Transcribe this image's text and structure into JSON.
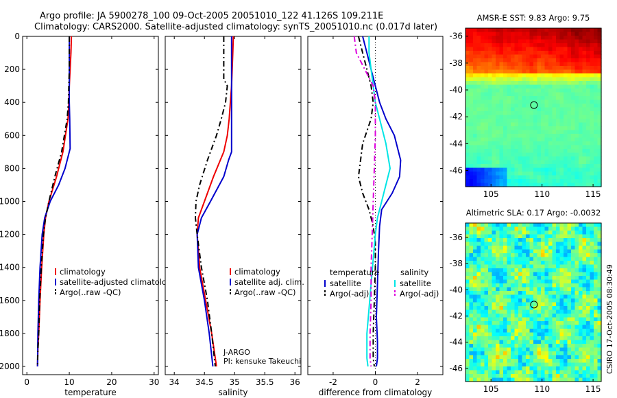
{
  "header": {
    "line1": "Argo profile: JA 5900278_100 09-Oct-2005 20051010_122 41.126S 109.211E",
    "line2": "Climatology: CARS2000. Satellite-adjusted climatology: synTS_20051010.nc (0.017d later)"
  },
  "side_label": "CSIRO 17-Oct-2005 08:30:49",
  "colors": {
    "climatology": "#ee0000",
    "satellite": "#0000cc",
    "argo": "#000000",
    "satellite_salinity": "#00e5e5",
    "argo_salinity": "#dd00dd"
  },
  "chart_data": [
    {
      "type": "line",
      "xlabel": "temperature",
      "xlim": [
        -1,
        31
      ],
      "ylim": [
        2050,
        0
      ],
      "xticks": [
        0,
        10,
        20,
        30
      ],
      "yticks": [
        0,
        200,
        400,
        600,
        800,
        1000,
        1200,
        1400,
        1600,
        1800,
        2000
      ],
      "legend": [
        "climatology",
        "satellite-adjusted climatology",
        "Argo(..raw -QC)"
      ],
      "series": [
        {
          "name": "climatology",
          "style": "solid",
          "color": "#ee0000",
          "x": [
            10.5,
            10.4,
            10.2,
            10.0,
            9.9,
            9.7,
            8.5,
            7.0,
            5.2,
            4.4,
            4.0,
            3.5,
            3.1,
            2.8,
            2.6,
            2.5
          ],
          "y": [
            0,
            100,
            200,
            300,
            400,
            500,
            700,
            850,
            1000,
            1100,
            1200,
            1400,
            1600,
            1800,
            1900,
            2000
          ]
        },
        {
          "name": "satellite-adjusted climatology",
          "style": "solid",
          "color": "#0000cc",
          "x": [
            10.0,
            10.0,
            10.0,
            10.0,
            10.0,
            10.1,
            10.2,
            9.0,
            7.5,
            5.5,
            4.2,
            3.6,
            3.1,
            2.8,
            2.6,
            2.5
          ],
          "y": [
            0,
            100,
            200,
            300,
            400,
            500,
            680,
            800,
            900,
            1000,
            1100,
            1200,
            1400,
            1600,
            1800,
            2000
          ]
        },
        {
          "name": "Argo(..raw -QC)",
          "style": "dashed",
          "color": "#000000",
          "x": [
            10.0,
            10.0,
            10.0,
            9.9,
            9.8,
            9.5,
            8.2,
            6.6,
            5.2,
            4.4,
            3.9,
            3.4,
            3.0,
            2.8,
            2.6,
            2.5
          ],
          "y": [
            0,
            100,
            200,
            300,
            400,
            500,
            700,
            850,
            1000,
            1100,
            1200,
            1400,
            1600,
            1800,
            1900,
            2000
          ]
        }
      ]
    },
    {
      "type": "line",
      "xlabel": "salinity",
      "xlim": [
        33.85,
        36.1
      ],
      "ylim": [
        2050,
        0
      ],
      "xticks": [
        34,
        34.5,
        35,
        35.5,
        36
      ],
      "legend": [
        "climatology",
        "satellite adj. clim.",
        "Argo(..raw -QC)"
      ],
      "annotation": [
        "J-ARGO",
        "PI: kensuke Takeuchi"
      ],
      "series": [
        {
          "name": "climatology",
          "style": "solid",
          "color": "#ee0000",
          "x": [
            34.98,
            34.97,
            34.96,
            34.95,
            34.93,
            34.91,
            34.88,
            34.82,
            34.65,
            34.5,
            34.4,
            34.38,
            34.42,
            34.52,
            34.62,
            34.7
          ],
          "y": [
            0,
            100,
            200,
            300,
            400,
            500,
            600,
            700,
            850,
            1000,
            1100,
            1200,
            1400,
            1600,
            1800,
            2000
          ]
        },
        {
          "name": "satellite adj. clim.",
          "style": "solid",
          "color": "#0000cc",
          "x": [
            34.95,
            34.95,
            34.95,
            34.95,
            34.95,
            34.95,
            34.95,
            34.95,
            34.9,
            34.82,
            34.6,
            34.45,
            34.38,
            34.4,
            34.5,
            34.58,
            34.64
          ],
          "y": [
            0,
            100,
            200,
            300,
            400,
            500,
            600,
            700,
            750,
            850,
            1000,
            1100,
            1200,
            1400,
            1600,
            1800,
            2000
          ]
        },
        {
          "name": "Argo(..raw -QC)",
          "style": "dashed",
          "color": "#000000",
          "x": [
            34.82,
            34.82,
            34.82,
            34.82,
            34.88,
            34.85,
            34.78,
            34.7,
            34.55,
            34.42,
            34.36,
            34.35,
            34.38,
            34.45,
            34.55,
            34.62,
            34.68
          ],
          "y": [
            0,
            100,
            200,
            260,
            300,
            400,
            500,
            600,
            750,
            900,
            1000,
            1100,
            1200,
            1400,
            1600,
            1800,
            2000
          ]
        }
      ]
    },
    {
      "type": "line",
      "xlabel": "difference from climatology",
      "xlim": [
        -3.2,
        3.2
      ],
      "ylim": [
        2050,
        0
      ],
      "xticks": [
        -2,
        0,
        2
      ],
      "zero_line": true,
      "legend_headers": [
        "temperature",
        "salinity"
      ],
      "legend": [
        "satellite",
        "Argo(-adj)",
        "satellite",
        "Argo(-adj)"
      ],
      "series": [
        {
          "name": "satellite",
          "group": "temperature",
          "style": "solid",
          "color": "#0000cc",
          "x": [
            -0.6,
            -0.4,
            -0.2,
            0.0,
            0.2,
            0.5,
            0.9,
            1.2,
            1.15,
            0.8,
            0.3,
            0.2,
            0.15,
            0.1,
            0.05,
            0.1,
            0.1,
            0.05
          ],
          "y": [
            0,
            100,
            200,
            300,
            400,
            500,
            600,
            750,
            850,
            950,
            1050,
            1150,
            1300,
            1500,
            1700,
            1850,
            1950,
            2000
          ]
        },
        {
          "name": "Argo(-adj)",
          "group": "temperature",
          "style": "dashed",
          "color": "#000000",
          "x": [
            -0.8,
            -0.6,
            -0.4,
            -0.2,
            -0.1,
            -0.2,
            -0.6,
            -0.8,
            -0.6,
            -0.3,
            -0.1,
            0.0,
            0.0,
            -0.05,
            -0.1,
            -0.1,
            -0.05
          ],
          "y": [
            0,
            100,
            200,
            300,
            400,
            500,
            650,
            850,
            950,
            1050,
            1150,
            1250,
            1400,
            1600,
            1800,
            1950,
            2000
          ]
        },
        {
          "name": "satellite",
          "group": "salinity",
          "style": "solid",
          "color": "#00e5e5",
          "x": [
            -0.3,
            -0.3,
            -0.2,
            -0.1,
            0.0,
            0.2,
            0.5,
            0.7,
            0.4,
            0.1,
            0.0,
            -0.1,
            -0.2,
            -0.3,
            -0.4,
            -0.4,
            -0.35
          ],
          "y": [
            0,
            100,
            200,
            300,
            400,
            500,
            650,
            800,
            950,
            1100,
            1200,
            1350,
            1500,
            1650,
            1800,
            1950,
            2000
          ]
        },
        {
          "name": "Argo(-adj)",
          "group": "salinity",
          "style": "dashed",
          "color": "#dd00dd",
          "x": [
            -1.0,
            -0.9,
            -0.5,
            -0.1,
            0.0,
            0.0,
            -0.05,
            -0.1,
            -0.15,
            -0.2,
            -0.2,
            -0.25,
            -0.25,
            -0.2
          ],
          "y": [
            0,
            100,
            200,
            300,
            400,
            600,
            800,
            1000,
            1200,
            1400,
            1600,
            1800,
            1950,
            2000
          ]
        }
      ]
    },
    {
      "type": "heatmap",
      "title": "AMSR-E SST: 9.83 Argo: 9.75",
      "xlim": [
        102.5,
        115.8
      ],
      "ylim": [
        -47.2,
        -35.4
      ],
      "xticks": [
        105,
        110,
        115
      ],
      "yticks": [
        -36,
        -38,
        -40,
        -42,
        -44,
        -46
      ],
      "marker": {
        "lon": 109.211,
        "lat": -41.126
      }
    },
    {
      "type": "heatmap",
      "title": "Altimetric SLA: 0.17 Argo: -0.0032",
      "xlim": [
        102.5,
        115.8
      ],
      "ylim": [
        -47.0,
        -34.9
      ],
      "xticks": [
        105,
        110,
        115
      ],
      "yticks": [
        -36,
        -38,
        -40,
        -42,
        -44,
        -46
      ],
      "marker": {
        "lon": 109.211,
        "lat": -41.126
      }
    }
  ]
}
